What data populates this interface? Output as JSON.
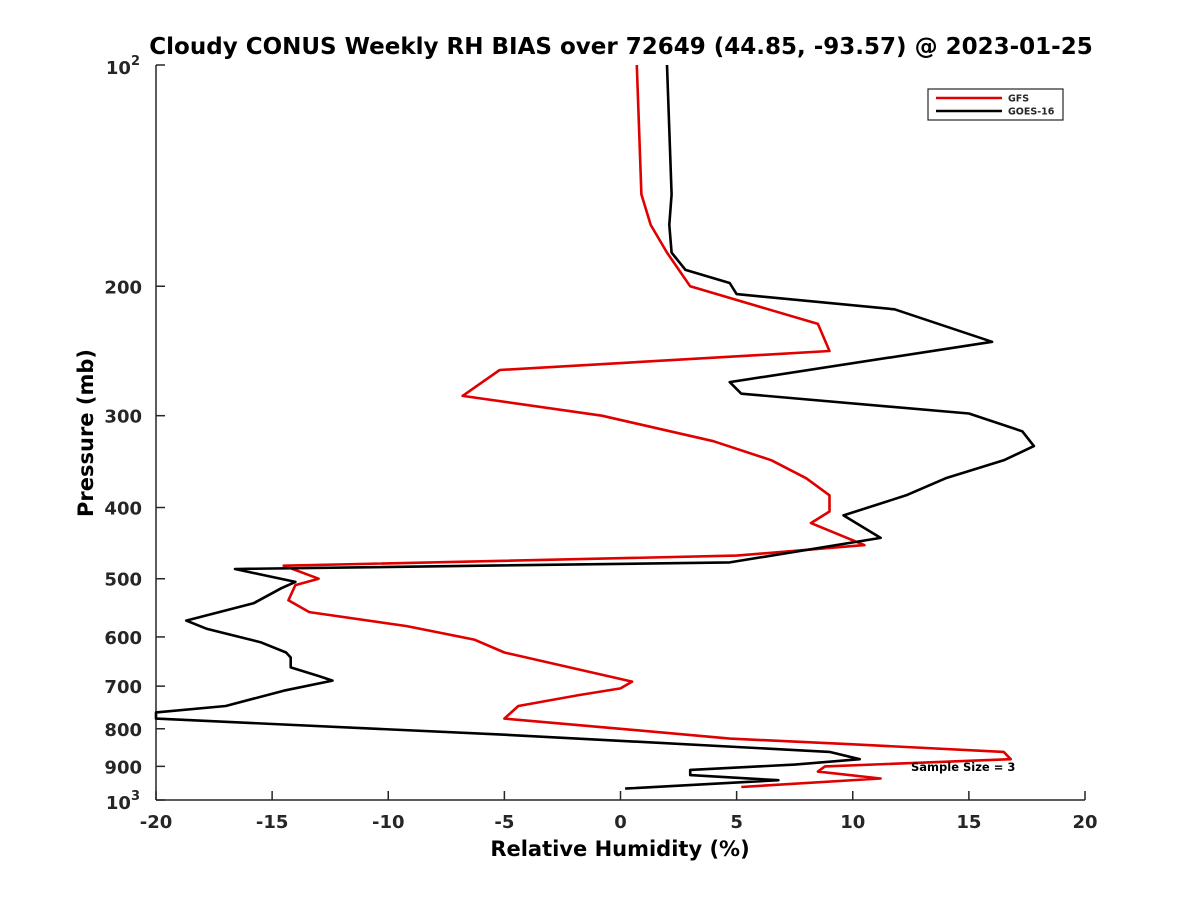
{
  "chart_data": {
    "type": "line",
    "title": "Cloudy CONUS Weekly RH BIAS over 72649 (44.85, -93.57) @ 2023-01-25",
    "xlabel": "Relative Humidity (%)",
    "ylabel": "Pressure (mb)",
    "xlim": [
      -20,
      20
    ],
    "ylim": [
      100,
      1000
    ],
    "y_scale": "log",
    "y_reversed": true,
    "xticks": [
      "-20",
      "-15",
      "-10",
      "-5",
      "0",
      "5",
      "10",
      "15",
      "20"
    ],
    "yticks": [
      {
        "value": 100,
        "base": "10",
        "exp": "2"
      },
      {
        "value": 200,
        "label": "200"
      },
      {
        "value": 300,
        "label": "300"
      },
      {
        "value": 400,
        "label": "400"
      },
      {
        "value": 500,
        "label": "500"
      },
      {
        "value": 600,
        "label": "600"
      },
      {
        "value": 700,
        "label": "700"
      },
      {
        "value": 800,
        "label": "800"
      },
      {
        "value": 900,
        "label": "900"
      },
      {
        "value": 1000,
        "base": "10",
        "exp": "3"
      }
    ],
    "legend_position": "top-right",
    "annotation": "Sample Size = 3",
    "series": [
      {
        "name": "GFS",
        "color": "#e00000",
        "x": [
          0.7,
          0.9,
          1.3,
          2.0,
          3.0,
          8.5,
          9.0,
          -5.2,
          -6.8,
          -0.8,
          4.0,
          6.5,
          8.0,
          9.0,
          9.0,
          8.2,
          10.5,
          5.0,
          -14.5,
          -13.0,
          -14.0,
          -14.3,
          -13.4,
          -9.2,
          -6.3,
          -5.0,
          0.5,
          0.0,
          -1.8,
          -4.4,
          -5.0,
          0.0,
          4.7,
          10.0,
          16.5,
          16.8,
          8.8,
          8.5,
          11.2,
          5.2
        ],
        "y": [
          100,
          150,
          165,
          180,
          200,
          225,
          245,
          260,
          282,
          300,
          325,
          345,
          365,
          385,
          405,
          420,
          450,
          465,
          480,
          500,
          510,
          535,
          555,
          580,
          605,
          630,
          690,
          705,
          720,
          745,
          775,
          800,
          825,
          840,
          860,
          880,
          900,
          915,
          935,
          960
        ]
      },
      {
        "name": "GOES-16",
        "color": "#000000",
        "x": [
          2.0,
          2.2,
          2.1,
          2.2,
          2.8,
          4.7,
          5.0,
          11.8,
          16.0,
          4.7,
          5.2,
          15.0,
          17.3,
          17.8,
          16.5,
          14.0,
          12.3,
          9.6,
          11.2,
          4.7,
          -16.6,
          -14.0,
          -14.6,
          -15.8,
          -18.7,
          -17.8,
          -15.5,
          -14.4,
          -14.2,
          -14.2,
          -13.0,
          -12.4,
          -14.5,
          -17.0,
          -20.0,
          -20.0,
          -5.0,
          9.0,
          10.3,
          7.5,
          3.0,
          3.0,
          6.8,
          0.2
        ],
        "y": [
          100,
          150,
          165,
          180,
          190,
          198,
          205,
          215,
          238,
          270,
          280,
          298,
          315,
          330,
          345,
          365,
          385,
          410,
          440,
          475,
          485,
          505,
          515,
          540,
          570,
          585,
          610,
          630,
          640,
          660,
          678,
          688,
          710,
          745,
          760,
          775,
          815,
          860,
          880,
          895,
          910,
          925,
          940,
          965
        ]
      }
    ]
  }
}
